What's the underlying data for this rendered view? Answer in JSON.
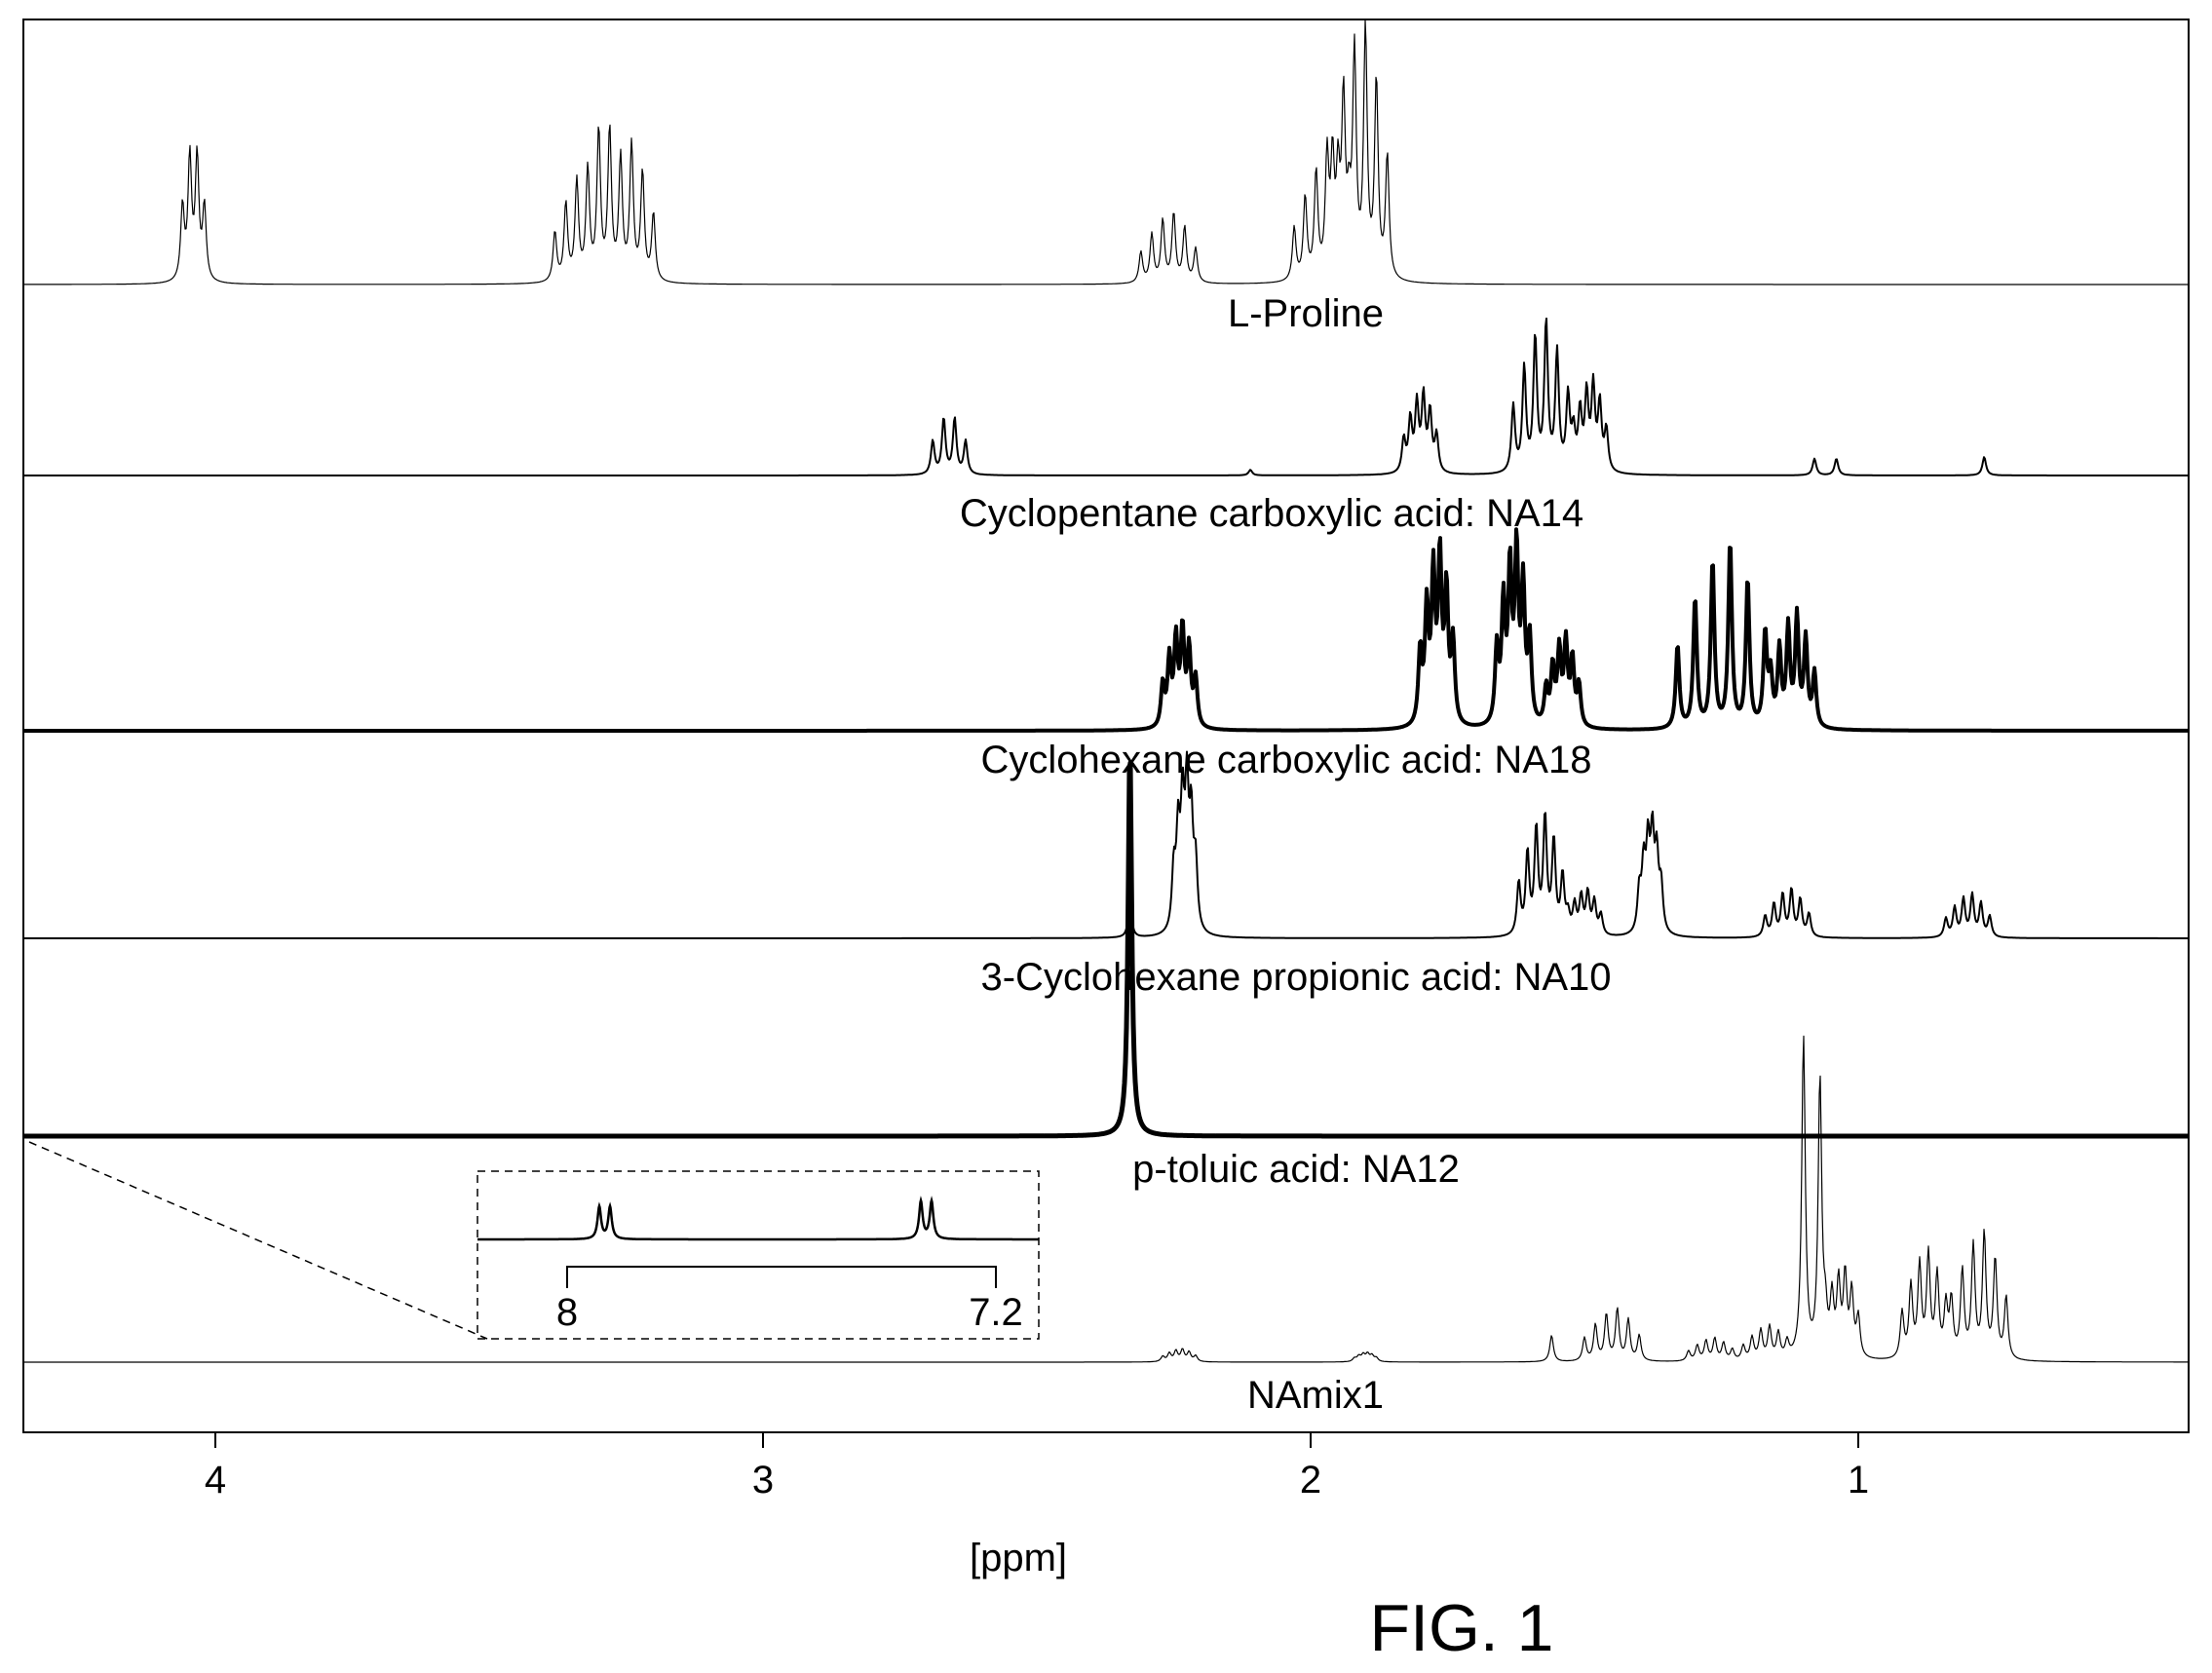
{
  "figure_label": "FIG. 1",
  "colors": {
    "ink": "#000000",
    "background": "#ffffff"
  },
  "chart_data": {
    "type": "line",
    "title": "",
    "xlabel": "[ppm]",
    "ylabel": "",
    "x_reversed": true,
    "xlim": [
      4.35,
      0.4
    ],
    "x_ticks": [
      4,
      3,
      2,
      1
    ],
    "grid": false,
    "legend": "none",
    "series": [
      {
        "name": "L-Proline",
        "peaks": [
          {
            "ppm": 4.04,
            "height": 0.5,
            "mult": "q",
            "spread": 0.02
          },
          {
            "ppm": 3.33,
            "height": 0.45,
            "mult": "m",
            "spread": 0.05
          },
          {
            "ppm": 3.25,
            "height": 0.55,
            "mult": "m",
            "spread": 0.05
          },
          {
            "ppm": 2.26,
            "height": 0.28,
            "mult": "m",
            "spread": 0.05
          },
          {
            "ppm": 1.98,
            "height": 0.48,
            "mult": "m",
            "spread": 0.05
          },
          {
            "ppm": 1.91,
            "height": 1.0,
            "mult": "m",
            "spread": 0.05
          }
        ]
      },
      {
        "name": "Cyclopentane carboxylic acid:  NA14",
        "peaks": [
          {
            "ppm": 2.66,
            "height": 0.3,
            "mult": "q",
            "spread": 0.03
          },
          {
            "ppm": 2.11,
            "height": 0.03,
            "mult": "s",
            "spread": 0.0
          },
          {
            "ppm": 1.8,
            "height": 0.4,
            "mult": "m",
            "spread": 0.03
          },
          {
            "ppm": 1.58,
            "height": 0.8,
            "mult": "m",
            "spread": 0.05
          },
          {
            "ppm": 1.49,
            "height": 0.45,
            "mult": "m",
            "spread": 0.03
          },
          {
            "ppm": 1.06,
            "height": 0.09,
            "mult": "d",
            "spread": 0.02
          },
          {
            "ppm": 0.77,
            "height": 0.1,
            "mult": "s",
            "spread": 0.0
          }
        ]
      },
      {
        "name": "Cyclohexane  carboxylic acid:  NA18",
        "peaks": [
          {
            "ppm": 2.24,
            "height": 0.35,
            "mult": "m",
            "spread": 0.03
          },
          {
            "ppm": 1.77,
            "height": 0.6,
            "mult": "m",
            "spread": 0.03
          },
          {
            "ppm": 1.63,
            "height": 0.62,
            "mult": "m",
            "spread": 0.03
          },
          {
            "ppm": 1.54,
            "height": 0.3,
            "mult": "m",
            "spread": 0.03
          },
          {
            "ppm": 1.25,
            "height": 0.68,
            "mult": "m",
            "spread": 0.08
          },
          {
            "ppm": 1.12,
            "height": 0.4,
            "mult": "m",
            "spread": 0.04
          }
        ]
      },
      {
        "name": "3-Cyclohexane propionic acid:  NA10",
        "peaks": [
          {
            "ppm": 2.33,
            "height": 0.2,
            "mult": "s",
            "spread": 0.0
          },
          {
            "ppm": 2.23,
            "height": 0.8,
            "mult": "m",
            "spread": 0.02
          },
          {
            "ppm": 1.58,
            "height": 0.7,
            "mult": "m",
            "spread": 0.04
          },
          {
            "ppm": 1.5,
            "height": 0.25,
            "mult": "m",
            "spread": 0.03
          },
          {
            "ppm": 1.38,
            "height": 0.55,
            "mult": "m",
            "spread": 0.02
          },
          {
            "ppm": 1.13,
            "height": 0.28,
            "mult": "m",
            "spread": 0.04
          },
          {
            "ppm": 0.8,
            "height": 0.25,
            "mult": "m",
            "spread": 0.04
          }
        ]
      },
      {
        "name": "p-toluic acid:  NA12",
        "peaks": [
          {
            "ppm": 2.33,
            "height": 1.0,
            "mult": "s",
            "spread": 0.0
          }
        ],
        "inset": {
          "ppm_labels": [
            "8",
            "7.2"
          ],
          "peaks": [
            {
              "ppm": 7.93,
              "height": 0.6,
              "mult": "d",
              "spread": 0.01
            },
            {
              "ppm": 7.33,
              "height": 0.7,
              "mult": "d",
              "spread": 0.01
            }
          ]
        }
      },
      {
        "name": "NAmix1",
        "peaks": [
          {
            "ppm": 2.24,
            "height": 0.08,
            "mult": "m",
            "spread": 0.03
          },
          {
            "ppm": 1.9,
            "height": 0.05,
            "mult": "m",
            "spread": 0.02
          },
          {
            "ppm": 1.56,
            "height": 0.18,
            "mult": "s",
            "spread": 0.0
          },
          {
            "ppm": 1.45,
            "height": 0.35,
            "mult": "m",
            "spread": 0.05
          },
          {
            "ppm": 1.27,
            "height": 0.15,
            "mult": "m",
            "spread": 0.04
          },
          {
            "ppm": 1.17,
            "height": 0.22,
            "mult": "m",
            "spread": 0.04
          },
          {
            "ppm": 1.1,
            "height": 2.2,
            "mult": "s",
            "spread": 0.0
          },
          {
            "ppm": 1.07,
            "height": 1.9,
            "mult": "s",
            "spread": 0.0
          },
          {
            "ppm": 1.03,
            "height": 0.55,
            "mult": "m",
            "spread": 0.03
          },
          {
            "ppm": 0.88,
            "height": 0.7,
            "mult": "m",
            "spread": 0.04
          },
          {
            "ppm": 0.78,
            "height": 0.85,
            "mult": "m",
            "spread": 0.05
          }
        ]
      }
    ]
  }
}
